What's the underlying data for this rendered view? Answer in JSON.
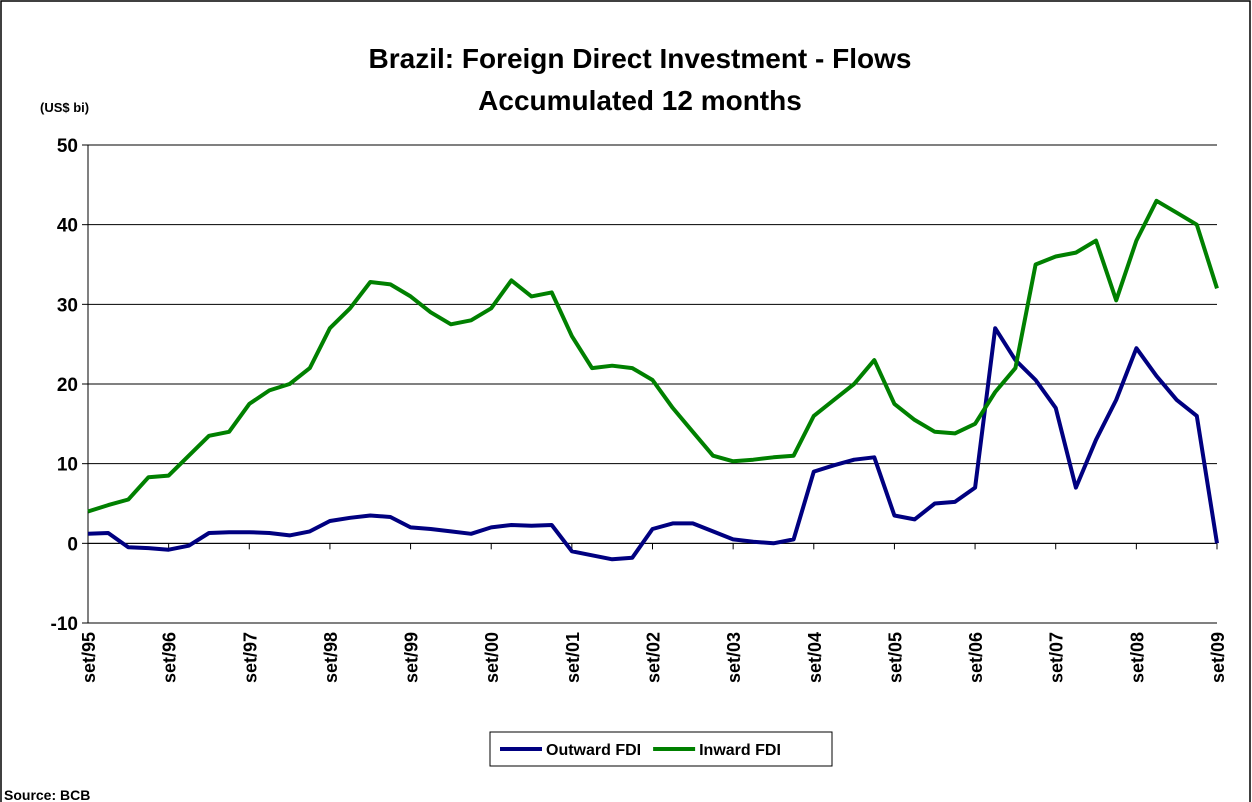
{
  "chart_data": {
    "type": "line",
    "title": "Brazil: Foreign Direct Investment - Flows",
    "subtitle": "Accumulated 12 months",
    "y_label": "(US$ bi)",
    "source": "Source: BCB",
    "categories": [
      "set/95",
      null,
      null,
      null,
      "set/96",
      null,
      null,
      null,
      "set/97",
      null,
      null,
      null,
      "set/98",
      null,
      null,
      null,
      "set/99",
      null,
      null,
      null,
      "set/00",
      null,
      null,
      null,
      "set/01",
      null,
      null,
      null,
      "set/02",
      null,
      null,
      null,
      "set/03",
      null,
      null,
      null,
      "set/04",
      null,
      null,
      null,
      "set/05",
      null,
      null,
      null,
      "set/06",
      null,
      null,
      null,
      "set/07",
      null,
      null,
      null,
      "set/08",
      null,
      null,
      null,
      "set/09"
    ],
    "series": [
      {
        "name": "Outward FDI",
        "color": "#000080",
        "values": [
          1.2,
          1.3,
          -0.5,
          -0.6,
          -0.8,
          -0.3,
          1.3,
          1.4,
          1.4,
          1.3,
          1,
          1.5,
          2.8,
          3.2,
          3.5,
          3.3,
          2,
          1.8,
          1.5,
          1.2,
          2,
          2.3,
          2.2,
          2.3,
          -1,
          -1.5,
          -2,
          -1.8,
          1.8,
          2.5,
          2.5,
          1.5,
          0.5,
          0.2,
          0,
          0.5,
          9,
          9.8,
          10.5,
          10.8,
          3.5,
          3,
          5,
          5.2,
          7,
          27,
          23,
          20.5,
          17,
          7,
          13,
          18,
          24.5,
          21,
          18,
          16,
          0
        ]
      },
      {
        "name": "Inward FDI",
        "color": "#008000",
        "values": [
          4,
          4.8,
          5.5,
          8.3,
          8.5,
          11,
          13.5,
          14,
          17.5,
          19.2,
          20,
          22,
          27,
          29.5,
          32.8,
          32.5,
          31,
          29,
          27.5,
          28,
          29.5,
          33,
          31,
          31.5,
          26,
          22,
          22.3,
          22,
          20.5,
          17,
          14,
          11,
          10.3,
          10.5,
          10.8,
          11,
          16,
          18,
          20,
          23,
          17.5,
          15.5,
          14,
          13.8,
          15,
          19,
          22,
          35,
          36,
          36.5,
          38,
          30.5,
          38,
          43,
          41.5,
          40,
          32
        ]
      }
    ],
    "ylim": [
      -10,
      50
    ],
    "yticks": [
      -10,
      0,
      10,
      20,
      30,
      40,
      50
    ],
    "grid": true,
    "legend": "bottom"
  }
}
